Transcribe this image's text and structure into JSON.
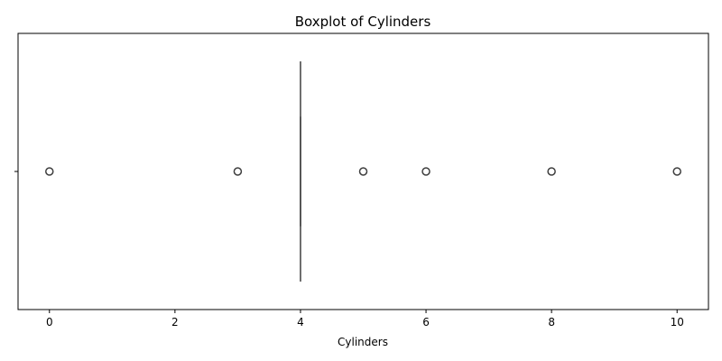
{
  "chart_data": {
    "type": "boxplot",
    "orientation": "horizontal",
    "title": "Boxplot of Cylinders",
    "xlabel": "Cylinders",
    "ylabel": "",
    "xlim": [
      -0.5,
      10.5
    ],
    "xticks": [
      0,
      2,
      4,
      6,
      8,
      10
    ],
    "xtick_labels": [
      "0",
      "2",
      "4",
      "6",
      "8",
      "10"
    ],
    "yticks": [
      ""
    ],
    "grid": false,
    "box": {
      "whisker_low": 4,
      "q1": 4,
      "median": 4,
      "q3": 4,
      "whisker_high": 4
    },
    "outliers": [
      0,
      3,
      5,
      6,
      8,
      10
    ],
    "colors": {
      "box_line": "#3f3f3f",
      "outlier_edge": "#3f3f3f",
      "frame": "#000000"
    }
  }
}
